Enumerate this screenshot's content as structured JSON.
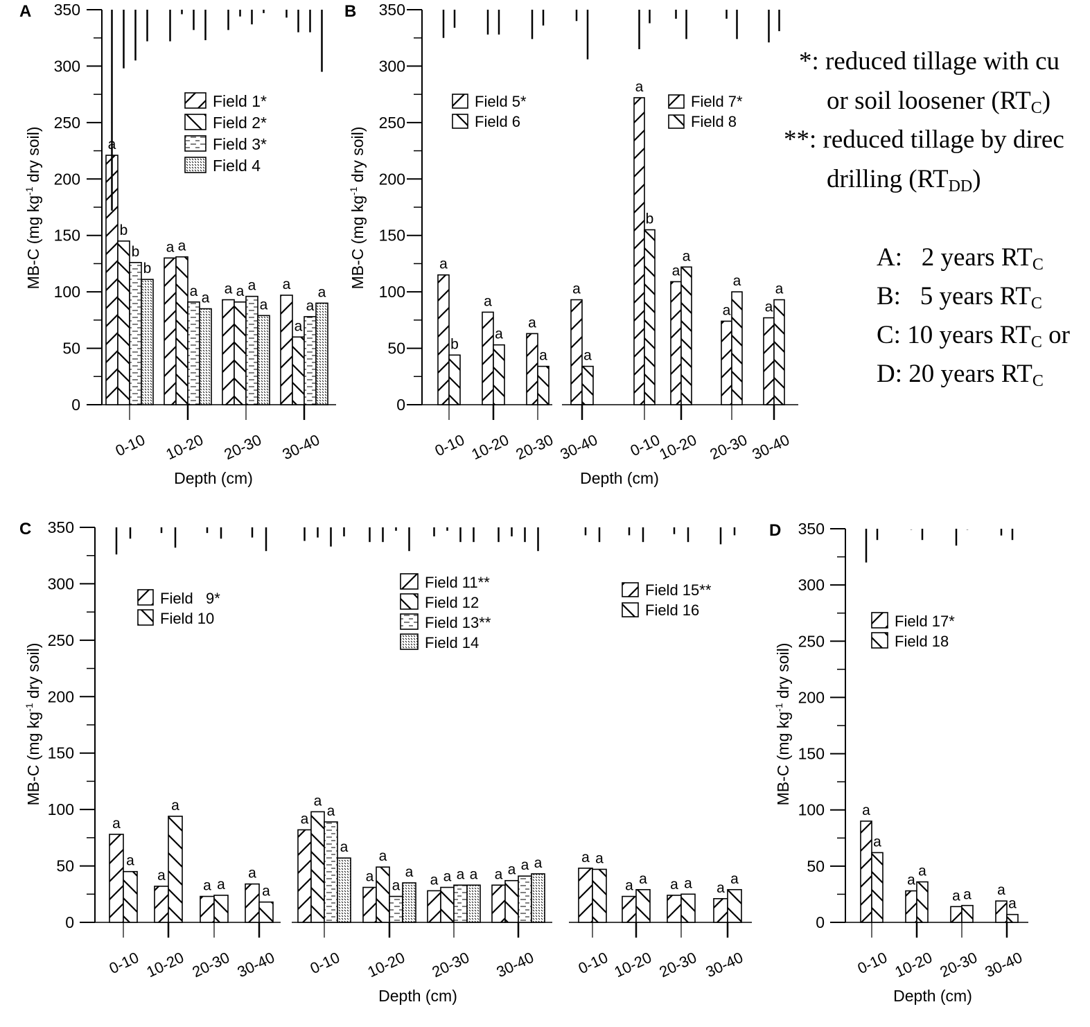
{
  "notes": {
    "single_star": "*: reduced tillage with cu",
    "single_star_cont": "or soil loosener (RT",
    "single_star_sub": "C",
    "double_star": "**: reduced tillage by direc",
    "double_star_cont": "drilling (RT",
    "double_star_sub": "DD",
    "durations": [
      {
        "label": "A:   2 years RT",
        "sub": "C",
        "tail": ""
      },
      {
        "label": "B:   5 years RT",
        "sub": "C",
        "tail": ""
      },
      {
        "label": "C: 10 years RT",
        "sub": "C",
        "tail": " or"
      },
      {
        "label": "D: 20 years RT",
        "sub": "C",
        "tail": ""
      }
    ]
  },
  "chart_data": [
    {
      "type": "bar",
      "panel": "A",
      "ylabel": "MB-C (mg kg-1 dry soil)",
      "xlabel": "Depth (cm)",
      "ylim": [
        0,
        350
      ],
      "yticks": [
        0,
        50,
        100,
        150,
        200,
        250,
        300,
        350
      ],
      "groups": [
        {
          "categories": [
            "0-10",
            "10-20",
            "20-30",
            "30-40"
          ],
          "legend_position": "top-center",
          "series": [
            {
              "name": "Field 1*",
              "pattern": "fwd",
              "values": [
                221,
                130,
                93,
                97
              ],
              "letters": [
                "a",
                "a",
                "a",
                "a"
              ],
              "err": [
                178,
                28,
                18,
                7
              ]
            },
            {
              "name": "Field 2*",
              "pattern": "back",
              "values": [
                145,
                131,
                91,
                60
              ],
              "letters": [
                "b",
                "a",
                "a",
                "a"
              ],
              "err": [
                52,
                4,
                6,
                20
              ]
            },
            {
              "name": "Field 3*",
              "pattern": "dash",
              "values": [
                126,
                91,
                96,
                78
              ],
              "letters": [
                "b",
                "a",
                "a",
                "a"
              ],
              "err": [
                45,
                18,
                13,
                20
              ]
            },
            {
              "name": "Field 4",
              "pattern": "dot",
              "values": [
                111,
                85,
                79,
                90
              ],
              "letters": [
                "b",
                "a",
                "a",
                "a"
              ],
              "err": [
                28,
                27,
                3,
                55
              ]
            }
          ]
        }
      ]
    },
    {
      "type": "bar",
      "panel": "B",
      "ylabel": "MB-C (mg kg-1 dry soil)",
      "xlabel": "Depth (cm)",
      "ylim": [
        0,
        350
      ],
      "yticks": [
        0,
        50,
        100,
        150,
        200,
        250,
        300,
        350
      ],
      "groups": [
        {
          "categories": [
            "0-10",
            "10-20",
            "20-30",
            "30-40"
          ],
          "legend_position": "top-left",
          "series": [
            {
              "name": "Field 5*",
              "pattern": "fwd",
              "values": [
                115,
                82,
                63,
                93
              ],
              "letters": [
                "a",
                "a",
                "a",
                "a"
              ],
              "err": [
                25,
                22,
                26,
                10
              ]
            },
            {
              "name": "Field 6",
              "pattern": "back",
              "values": [
                44,
                53,
                34,
                34
              ],
              "letters": [
                "b",
                "a",
                "a",
                "a"
              ],
              "err": [
                16,
                22,
                14,
                44
              ]
            }
          ]
        },
        {
          "categories": [
            "0-10",
            "10-20",
            "20-30",
            "30-40"
          ],
          "legend_position": "top-right",
          "series": [
            {
              "name": "Field 7*",
              "pattern": "fwd",
              "values": [
                272,
                109,
                74,
                77
              ],
              "letters": [
                "a",
                "a",
                "a",
                "a"
              ],
              "err": [
                35,
                8,
                8,
                29
              ]
            },
            {
              "name": "Field 8",
              "pattern": "back",
              "values": [
                155,
                122,
                100,
                93
              ],
              "letters": [
                "b",
                "a",
                "a",
                "a"
              ],
              "err": [
                12,
                26,
                26,
                19
              ]
            }
          ]
        }
      ]
    },
    {
      "type": "bar",
      "panel": "C",
      "ylabel": "MB-C (mg kg-1 dry soil)",
      "xlabel": "Depth (cm)",
      "ylim": [
        0,
        350
      ],
      "yticks": [
        0,
        50,
        100,
        150,
        200,
        250,
        300,
        350
      ],
      "groups": [
        {
          "categories": [
            "0-10",
            "10-20",
            "20-30",
            "30-40"
          ],
          "legend_position": "top-left",
          "series": [
            {
              "name": "Field   9*",
              "pattern": "fwd",
              "values": [
                78,
                32,
                23,
                34
              ],
              "letters": [
                "a",
                "a",
                "a",
                "a"
              ],
              "err": [
                24,
                5,
                5,
                9
              ]
            },
            {
              "name": "Field 10",
              "pattern": "back",
              "values": [
                45,
                94,
                24,
                18
              ],
              "letters": [
                "a",
                "a",
                "a",
                "a"
              ],
              "err": [
                10,
                18,
                10,
                21
              ]
            }
          ]
        },
        {
          "categories": [
            "0-10",
            "10-20",
            "20-30",
            "30-40"
          ],
          "legend_position": "top-center",
          "series": [
            {
              "name": "Field 11**",
              "pattern": "fwd",
              "values": [
                82,
                31,
                28,
                33
              ],
              "letters": [
                "a",
                "a",
                "a",
                "a"
              ],
              "err": [
                12,
                13,
                8,
                13
              ]
            },
            {
              "name": "Field 12",
              "pattern": "back",
              "values": [
                98,
                49,
                31,
                37
              ],
              "letters": [
                "a",
                "a",
                "a",
                "a"
              ],
              "err": [
                9,
                13,
                3,
                8
              ]
            },
            {
              "name": "Field 13**",
              "pattern": "dash",
              "values": [
                89,
                23,
                33,
                41
              ],
              "letters": [
                "a",
                "a",
                "a",
                "a"
              ],
              "err": [
                17,
                3,
                13,
                13
              ]
            },
            {
              "name": "Field 14",
              "pattern": "dot",
              "values": [
                57,
                35,
                33,
                43
              ],
              "letters": [
                "a",
                "a",
                "a",
                "a"
              ],
              "err": [
                8,
                21,
                13,
                21
              ]
            }
          ]
        },
        {
          "categories": [
            "0-10",
            "10-20",
            "20-30",
            "30-40"
          ],
          "legend_position": "top-right",
          "series": [
            {
              "name": "Field 15**",
              "pattern": "fwd",
              "values": [
                48,
                23,
                24,
                21
              ],
              "letters": [
                "a",
                "a",
                "a",
                "a"
              ],
              "err": [
                7,
                7,
                6,
                15
              ]
            },
            {
              "name": "Field 16",
              "pattern": "back",
              "values": [
                47,
                29,
                25,
                29
              ],
              "letters": [
                "a",
                "a",
                "a",
                "a"
              ],
              "err": [
                13,
                13,
                13,
                7
              ]
            }
          ]
        }
      ]
    },
    {
      "type": "bar",
      "panel": "D",
      "ylabel": "MB-C (mg kg-1 dry soil)",
      "xlabel": "Depth (cm)",
      "ylim": [
        0,
        350
      ],
      "yticks": [
        0,
        50,
        100,
        150,
        200,
        250,
        300,
        350
      ],
      "groups": [
        {
          "categories": [
            "0-10",
            "10-20",
            "20-30",
            "30-40"
          ],
          "legend_position": "top-left",
          "series": [
            {
              "name": "Field 17*",
              "pattern": "fwd",
              "values": [
                90,
                28,
                14,
                19
              ],
              "letters": [
                "a",
                "a",
                "a",
                "a"
              ],
              "err": [
                30,
                1,
                15,
                6
              ]
            },
            {
              "name": "Field 18",
              "pattern": "back",
              "values": [
                62,
                36,
                15,
                7
              ],
              "letters": [
                "a",
                "a",
                "a",
                "a"
              ],
              "err": [
                10,
                10,
                1,
                10
              ]
            }
          ]
        }
      ]
    }
  ]
}
